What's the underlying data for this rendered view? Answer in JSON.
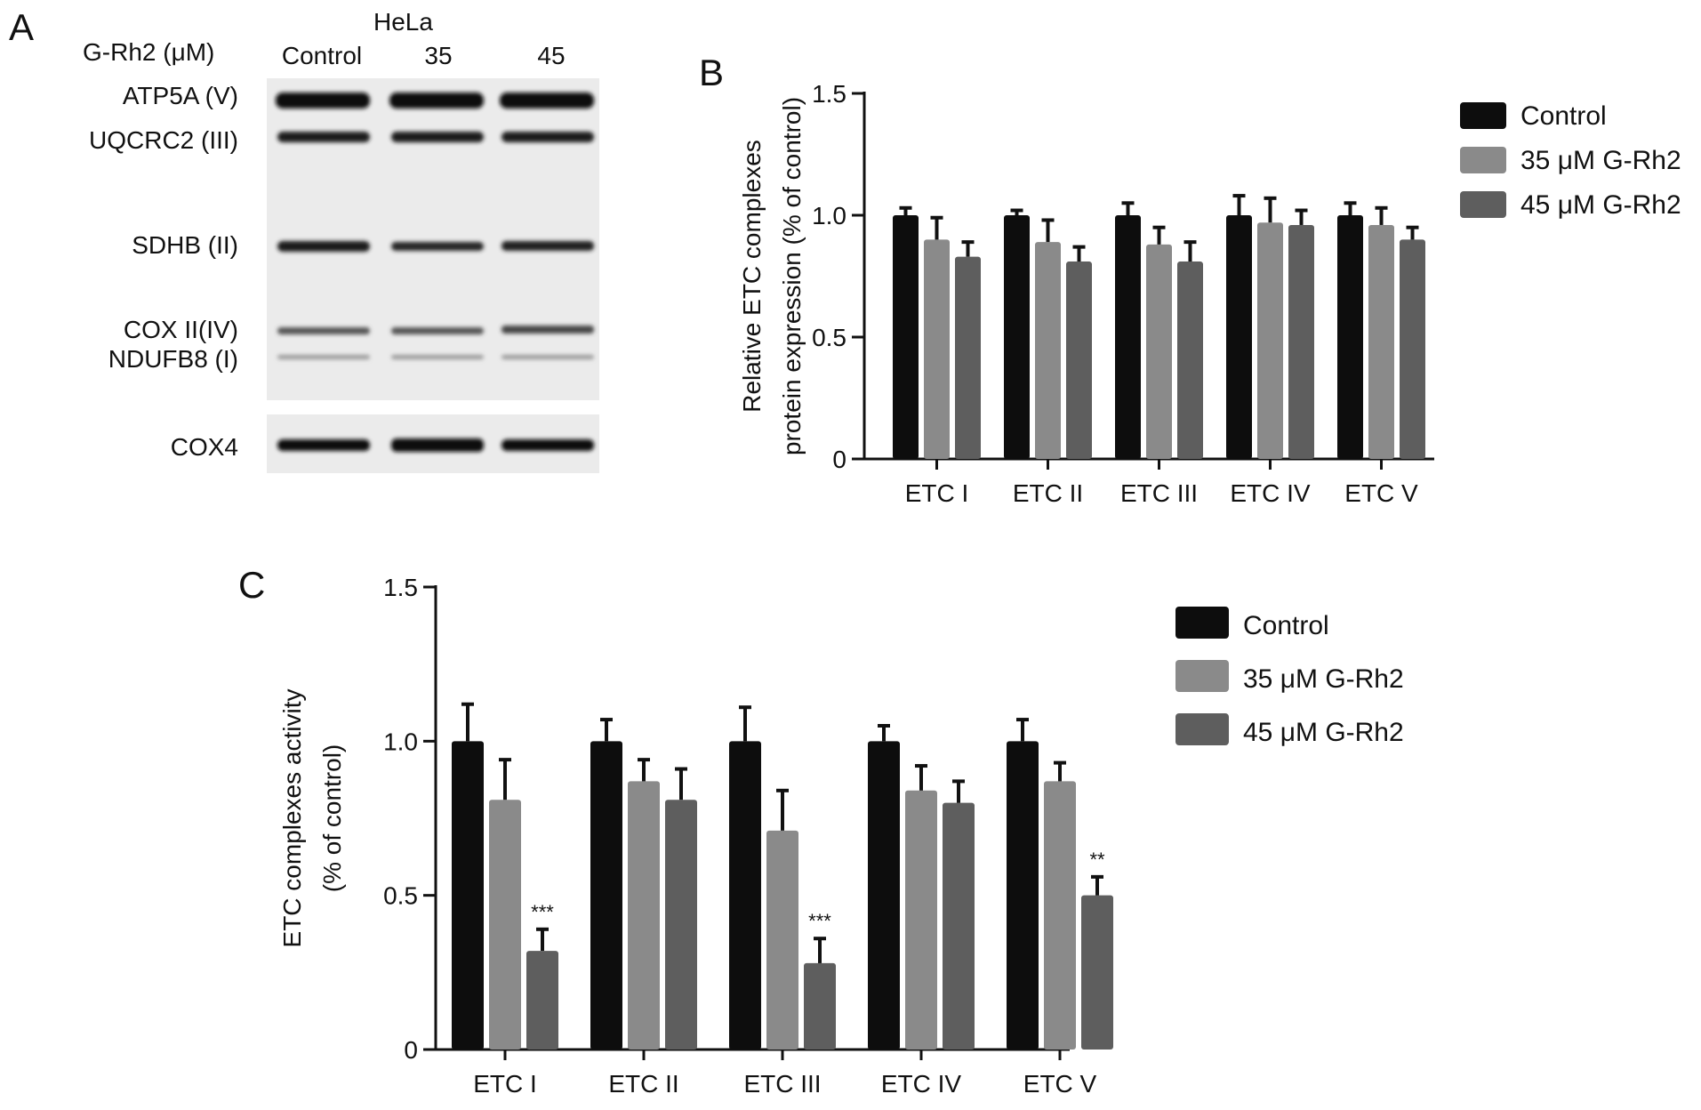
{
  "panels": {
    "A": "A",
    "B": "B",
    "C": "C"
  },
  "blot": {
    "cell_line": "HeLa",
    "treatment_label": "G-Rh2 (μM)",
    "lanes": [
      "Control",
      "35",
      "45"
    ],
    "bands": [
      "ATP5A (V)",
      "UQCRC2 (III)",
      "SDHB (II)",
      "COX II(IV)",
      "NDUFB8 (I)"
    ],
    "loading_control": "COX4"
  },
  "colors": {
    "control": "#0d0d0d",
    "g35": "#8a8a8a",
    "g45": "#5e5e5e"
  },
  "chart_data": [
    {
      "type": "bar",
      "panel": "B",
      "categories": [
        "ETC I",
        "ETC II",
        "ETC III",
        "ETC IV",
        "ETC V"
      ],
      "ylabel": [
        "Relative ETC complexes",
        "protein expression (% of control)"
      ],
      "ylim": [
        0,
        1.5
      ],
      "yticks": [
        "0",
        "0.5",
        "1.0",
        "1.5"
      ],
      "legend_position": "top-right",
      "series": [
        {
          "name": "Control",
          "values": [
            1.0,
            1.0,
            1.0,
            1.0,
            1.0
          ],
          "errors": [
            0.03,
            0.02,
            0.05,
            0.08,
            0.05
          ]
        },
        {
          "name": "35 μM G-Rh2",
          "values": [
            0.9,
            0.89,
            0.88,
            0.97,
            0.96
          ],
          "errors": [
            0.09,
            0.09,
            0.07,
            0.1,
            0.07
          ]
        },
        {
          "name": "45 μM G-Rh2",
          "values": [
            0.83,
            0.81,
            0.81,
            0.96,
            0.9
          ],
          "errors": [
            0.06,
            0.06,
            0.08,
            0.06,
            0.05
          ]
        }
      ]
    },
    {
      "type": "bar",
      "panel": "C",
      "categories": [
        "ETC I",
        "ETC II",
        "ETC III",
        "ETC IV",
        "ETC V"
      ],
      "ylabel": [
        "ETC complexes activity",
        "(% of control)"
      ],
      "ylim": [
        0,
        1.5
      ],
      "yticks": [
        "0",
        "0.5",
        "1.0",
        "1.5"
      ],
      "legend_position": "top-right",
      "series": [
        {
          "name": "Control",
          "values": [
            1.0,
            1.0,
            1.0,
            1.0,
            1.0
          ],
          "errors": [
            0.12,
            0.07,
            0.11,
            0.05,
            0.07
          ]
        },
        {
          "name": "35 μM G-Rh2",
          "values": [
            0.81,
            0.87,
            0.71,
            0.84,
            0.87
          ],
          "errors": [
            0.13,
            0.07,
            0.13,
            0.08,
            0.06
          ]
        },
        {
          "name": "45 μM G-Rh2",
          "values": [
            0.32,
            0.81,
            0.28,
            0.8,
            0.5
          ],
          "errors": [
            0.07,
            0.1,
            0.08,
            0.07,
            0.06
          ]
        }
      ],
      "significance": [
        {
          "category": "ETC I",
          "series": "45 μM G-Rh2",
          "label": "***"
        },
        {
          "category": "ETC III",
          "series": "45 μM G-Rh2",
          "label": "***"
        },
        {
          "category": "ETC V",
          "series": "45 μM G-Rh2",
          "label": "**"
        }
      ]
    }
  ]
}
